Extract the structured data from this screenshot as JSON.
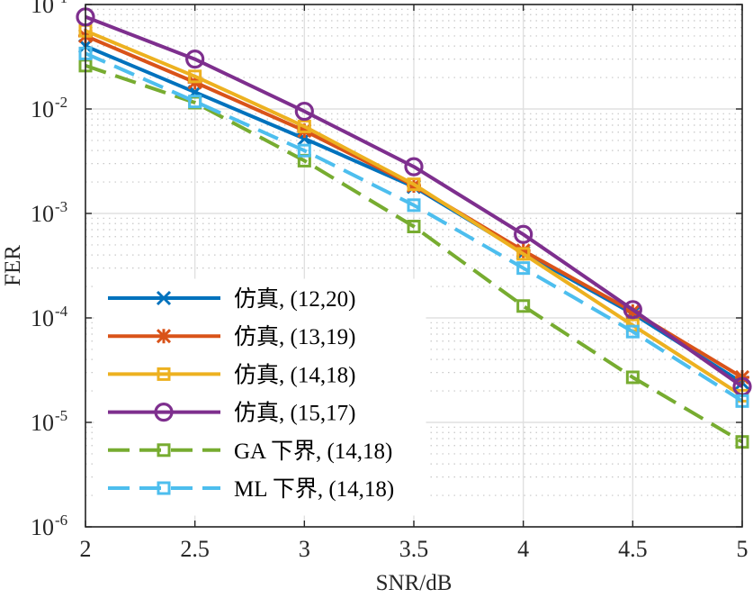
{
  "chart_data": {
    "type": "line",
    "xlabel": "SNR/dB",
    "ylabel": "FER",
    "yscale": "log",
    "xlim": [
      2,
      5
    ],
    "ylim": [
      1e-06,
      0.1
    ],
    "grid": true,
    "minor_grid": true,
    "legend_position": "bottom-left",
    "x_tick_labels": [
      "2",
      "2.5",
      "3",
      "3.5",
      "4",
      "4.5",
      "5"
    ],
    "y_tick_labels": [
      {
        "base": "10",
        "exp": "-1",
        "value": 0.1
      },
      {
        "base": "10",
        "exp": "-2",
        "value": 0.01
      },
      {
        "base": "10",
        "exp": "-3",
        "value": 0.001
      },
      {
        "base": "10",
        "exp": "-4",
        "value": 0.0001
      },
      {
        "base": "10",
        "exp": "-5",
        "value": 1e-05
      },
      {
        "base": "10",
        "exp": "-6",
        "value": 1e-06
      }
    ],
    "x": [
      2,
      2.5,
      3,
      3.5,
      4,
      4.5,
      5
    ],
    "series": [
      {
        "name": "仿真, (12,20)",
        "color": "#0072BD",
        "marker": "x",
        "dash": "solid",
        "values": [
          0.04,
          0.0145,
          0.0052,
          0.0018,
          0.00042,
          0.00011,
          2.4e-05
        ]
      },
      {
        "name": "仿真, (13,19)",
        "color": "#D95319",
        "marker": "star",
        "dash": "solid",
        "values": [
          0.05,
          0.018,
          0.0062,
          0.00185,
          0.00044,
          0.000115,
          2.7e-05
        ]
      },
      {
        "name": "仿真, (14,18)",
        "color": "#EDB120",
        "marker": "square",
        "dash": "solid",
        "values": [
          0.056,
          0.0205,
          0.0068,
          0.0019,
          0.00041,
          8.5e-05,
          1.8e-05
        ]
      },
      {
        "name": "仿真, (15,17)",
        "color": "#7E2F8E",
        "marker": "circle",
        "dash": "solid",
        "values": [
          0.076,
          0.03,
          0.0095,
          0.0028,
          0.00063,
          0.00012,
          2.2e-05
        ]
      },
      {
        "name": "GA 下界, (14,18)",
        "color": "#77AC30",
        "marker": "square",
        "dash": "dashed",
        "values": [
          0.026,
          0.0115,
          0.0032,
          0.00075,
          0.00013,
          2.7e-05,
          6.5e-06
        ]
      },
      {
        "name": "ML 下界, (14,18)",
        "color": "#4DBEEE",
        "marker": "square",
        "dash": "dashed",
        "values": [
          0.034,
          0.0118,
          0.004,
          0.0012,
          0.0003,
          7.4e-05,
          1.6e-05
        ]
      }
    ]
  }
}
